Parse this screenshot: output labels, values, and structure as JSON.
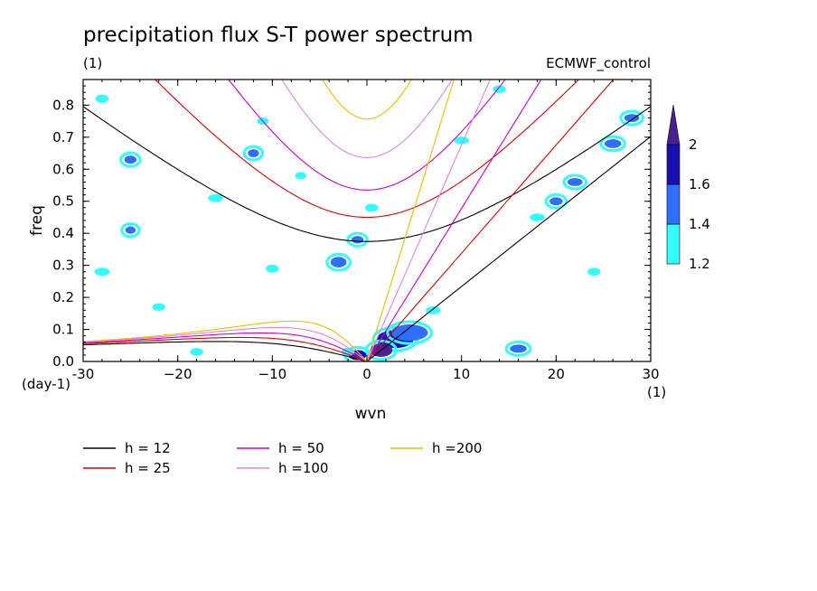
{
  "chart_data": {
    "type": "contour",
    "title": "precipitation flux S-T power spectrum",
    "subtitle_left": "(1)",
    "subtitle_right": "ECMWF_control",
    "xlabel": "wvn",
    "ylabel": "freq",
    "x_unit": "(1)",
    "y_unit": "(day-1)",
    "xlim": [
      -30,
      30
    ],
    "ylim": [
      0,
      0.88
    ],
    "xticks": [
      -30,
      -20,
      -10,
      0,
      10,
      20,
      30
    ],
    "xtick_labels": [
      "-30",
      "−20",
      "−10",
      "0",
      "10",
      "20",
      "30"
    ],
    "yticks": [
      0.0,
      0.1,
      0.2,
      0.3,
      0.4,
      0.5,
      0.6,
      0.7,
      0.8
    ],
    "ytick_labels": [
      "0.0",
      "0.1",
      "0.2",
      "0.3",
      "0.4",
      "0.5",
      "0.6",
      "0.7",
      "0.8"
    ],
    "colorbar": {
      "levels": [
        "1.2",
        "1.4",
        "1.6",
        "2"
      ],
      "colors": [
        "#33ffff",
        "#2f6fff",
        "#1a10b0",
        "#4b2090"
      ]
    },
    "shading_blobs": [
      {
        "x": 3,
        "y": 0.07,
        "w": 3.5,
        "h": 0.045,
        "level": 2
      },
      {
        "x": 4.5,
        "y": 0.09,
        "w": 3.5,
        "h": 0.04,
        "level": 1
      },
      {
        "x": 1.5,
        "y": 0.035,
        "w": 2,
        "h": 0.03,
        "level": 3
      },
      {
        "x": -1,
        "y": 0.02,
        "w": 1.5,
        "h": 0.02,
        "level": 2
      },
      {
        "x": -2,
        "y": 0.03,
        "w": 1,
        "h": 0.015,
        "level": 0
      },
      {
        "x": -28,
        "y": 0.82,
        "w": 1,
        "h": 0.015,
        "level": 0
      },
      {
        "x": -25,
        "y": 0.63,
        "w": 0.9,
        "h": 0.014,
        "level": 1
      },
      {
        "x": -11,
        "y": 0.75,
        "w": 0.8,
        "h": 0.012,
        "level": 0
      },
      {
        "x": -12,
        "y": 0.65,
        "w": 0.8,
        "h": 0.014,
        "level": 1
      },
      {
        "x": -16,
        "y": 0.51,
        "w": 1.2,
        "h": 0.013,
        "level": 0
      },
      {
        "x": -25,
        "y": 0.41,
        "w": 0.7,
        "h": 0.012,
        "level": 1
      },
      {
        "x": -3,
        "y": 0.31,
        "w": 1.3,
        "h": 0.022,
        "level": 1
      },
      {
        "x": -10,
        "y": 0.29,
        "w": 1,
        "h": 0.014,
        "level": 0
      },
      {
        "x": -1,
        "y": 0.38,
        "w": 0.9,
        "h": 0.012,
        "level": 1
      },
      {
        "x": 0.5,
        "y": 0.48,
        "w": 1,
        "h": 0.014,
        "level": 0
      },
      {
        "x": 10,
        "y": 0.69,
        "w": 1.2,
        "h": 0.012,
        "level": 0
      },
      {
        "x": 20,
        "y": 0.5,
        "w": 1,
        "h": 0.014,
        "level": 1
      },
      {
        "x": 22,
        "y": 0.56,
        "w": 1.2,
        "h": 0.014,
        "level": 1
      },
      {
        "x": 26,
        "y": 0.68,
        "w": 1.4,
        "h": 0.016,
        "level": 1
      },
      {
        "x": 28,
        "y": 0.76,
        "w": 1.2,
        "h": 0.014,
        "level": 1
      },
      {
        "x": 18,
        "y": 0.45,
        "w": 1.2,
        "h": 0.013,
        "level": 0
      },
      {
        "x": 16,
        "y": 0.04,
        "w": 1.4,
        "h": 0.014,
        "level": 1
      },
      {
        "x": -18,
        "y": 0.03,
        "w": 1,
        "h": 0.013,
        "level": 0
      },
      {
        "x": -28,
        "y": 0.28,
        "w": 1.2,
        "h": 0.014,
        "level": 0
      },
      {
        "x": 14,
        "y": 0.85,
        "w": 1,
        "h": 0.013,
        "level": 0
      },
      {
        "x": -7,
        "y": 0.58,
        "w": 0.8,
        "h": 0.012,
        "level": 0
      },
      {
        "x": 7,
        "y": 0.16,
        "w": 1.2,
        "h": 0.013,
        "level": 0
      },
      {
        "x": 24,
        "y": 0.28,
        "w": 1,
        "h": 0.013,
        "level": 0
      },
      {
        "x": -22,
        "y": 0.17,
        "w": 1,
        "h": 0.012,
        "level": 0
      }
    ],
    "series": [
      {
        "name": "h = 12",
        "h": 12,
        "color": "#000000",
        "legend": "h = 12"
      },
      {
        "name": "h = 25",
        "h": 25,
        "color": "#e00000",
        "legend": "h = 25"
      },
      {
        "name": "h = 50",
        "h": 50,
        "color": "#cc00cc",
        "legend": "h = 50"
      },
      {
        "name": "h = 100",
        "h": 100,
        "color": "#dd88dd",
        "legend": "h =100"
      },
      {
        "name": "h = 200",
        "h": 200,
        "color": "#e8c000",
        "legend": "h =200"
      }
    ]
  }
}
